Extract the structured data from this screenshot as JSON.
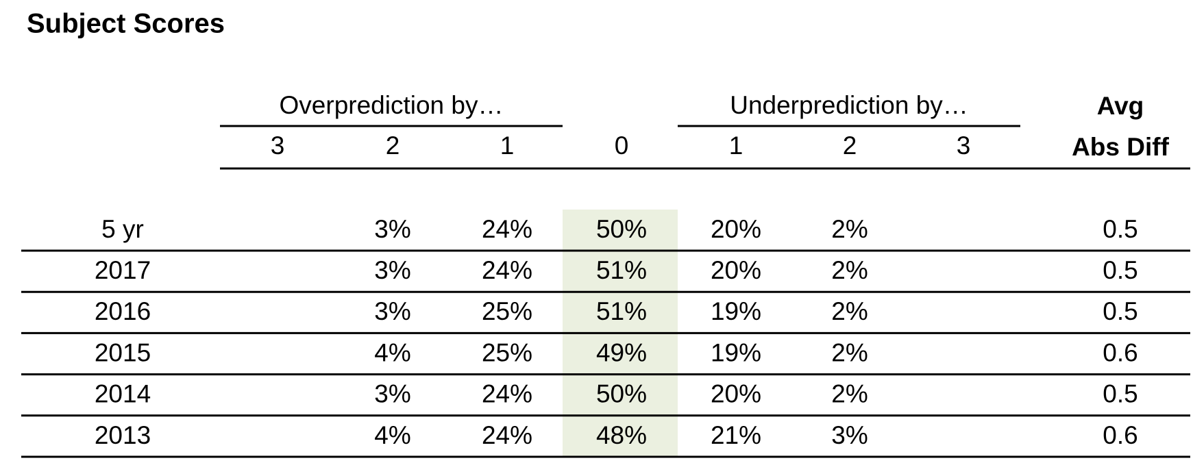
{
  "title": "Subject Scores",
  "table": {
    "groups": [
      "Overprediction by…",
      "Underprediction by…"
    ],
    "columns": [
      "3",
      "2",
      "1",
      "0",
      "1",
      "2",
      "3"
    ],
    "avg_header": [
      "Avg",
      "Abs Diff"
    ],
    "rows": [
      {
        "label": "5 yr",
        "cells": [
          null,
          "3%",
          "24%",
          "50%",
          "20%",
          "2%",
          null
        ],
        "avg": "0.5"
      },
      {
        "label": "2017",
        "cells": [
          null,
          "3%",
          "24%",
          "51%",
          "20%",
          "2%",
          null
        ],
        "avg": "0.5"
      },
      {
        "label": "2016",
        "cells": [
          null,
          "3%",
          "25%",
          "51%",
          "19%",
          "2%",
          null
        ],
        "avg": "0.5"
      },
      {
        "label": "2015",
        "cells": [
          null,
          "4%",
          "25%",
          "49%",
          "19%",
          "2%",
          null
        ],
        "avg": "0.6"
      },
      {
        "label": "2014",
        "cells": [
          null,
          "3%",
          "24%",
          "50%",
          "20%",
          "2%",
          null
        ],
        "avg": "0.5"
      },
      {
        "label": "2013",
        "cells": [
          null,
          "4%",
          "24%",
          "48%",
          "21%",
          "3%",
          null
        ],
        "avg": "0.6"
      }
    ]
  }
}
